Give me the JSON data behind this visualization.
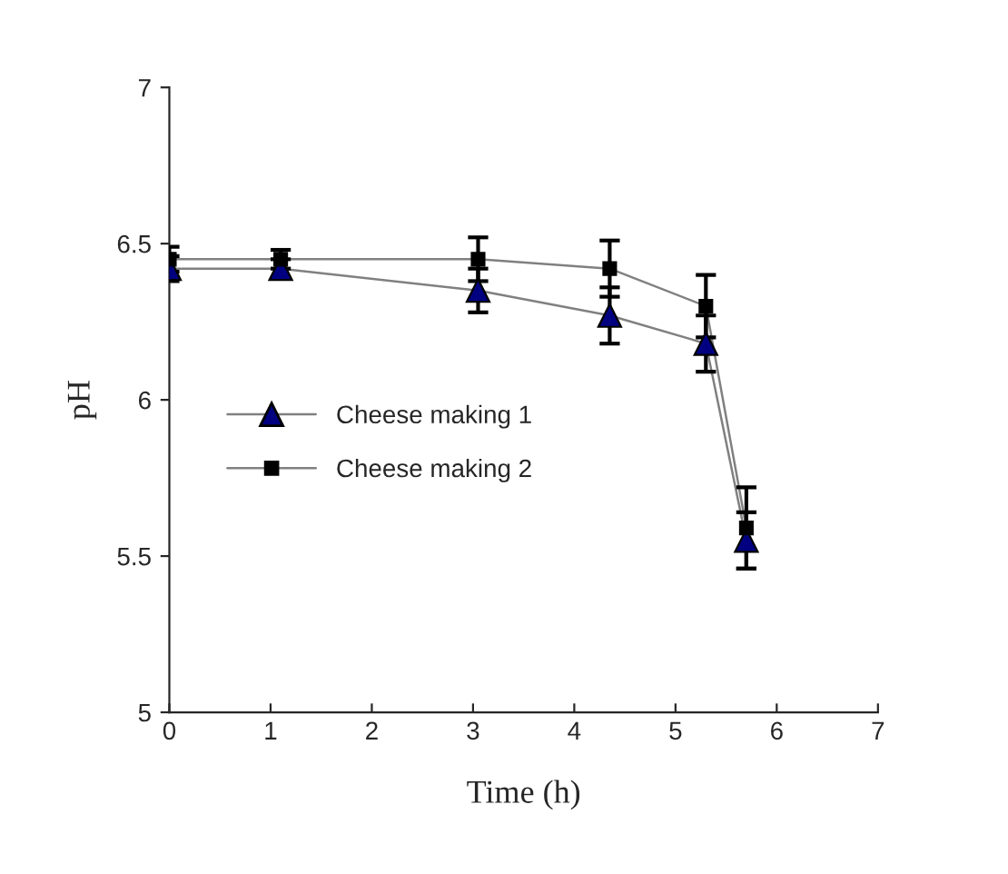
{
  "chart_data": {
    "type": "line",
    "xlabel": "Time (h)",
    "ylabel": "pH",
    "xlim": [
      0,
      7
    ],
    "xticks": [
      0,
      1,
      2,
      3,
      4,
      5,
      6,
      7
    ],
    "ylim": [
      5,
      7
    ],
    "yticks": [
      5,
      5.5,
      6,
      6.5,
      7
    ],
    "grid": false,
    "legend": "left",
    "series": [
      {
        "name": "Cheese making 1",
        "color": "#000080",
        "marker": "triangle",
        "x": [
          0,
          1.1,
          3.05,
          4.35,
          5.3,
          5.7
        ],
        "values": [
          6.42,
          6.42,
          6.35,
          6.27,
          6.18,
          5.55
        ],
        "errors": [
          0.04,
          0.03,
          0.07,
          0.09,
          0.09,
          0.09
        ]
      },
      {
        "name": "Cheese making 2",
        "color": "#000000",
        "marker": "square",
        "x": [
          0,
          1.1,
          3.05,
          4.35,
          5.3,
          5.7
        ],
        "values": [
          6.45,
          6.45,
          6.45,
          6.42,
          6.3,
          5.59
        ],
        "errors": [
          0.04,
          0.03,
          0.07,
          0.09,
          0.1,
          0.13
        ]
      }
    ]
  }
}
